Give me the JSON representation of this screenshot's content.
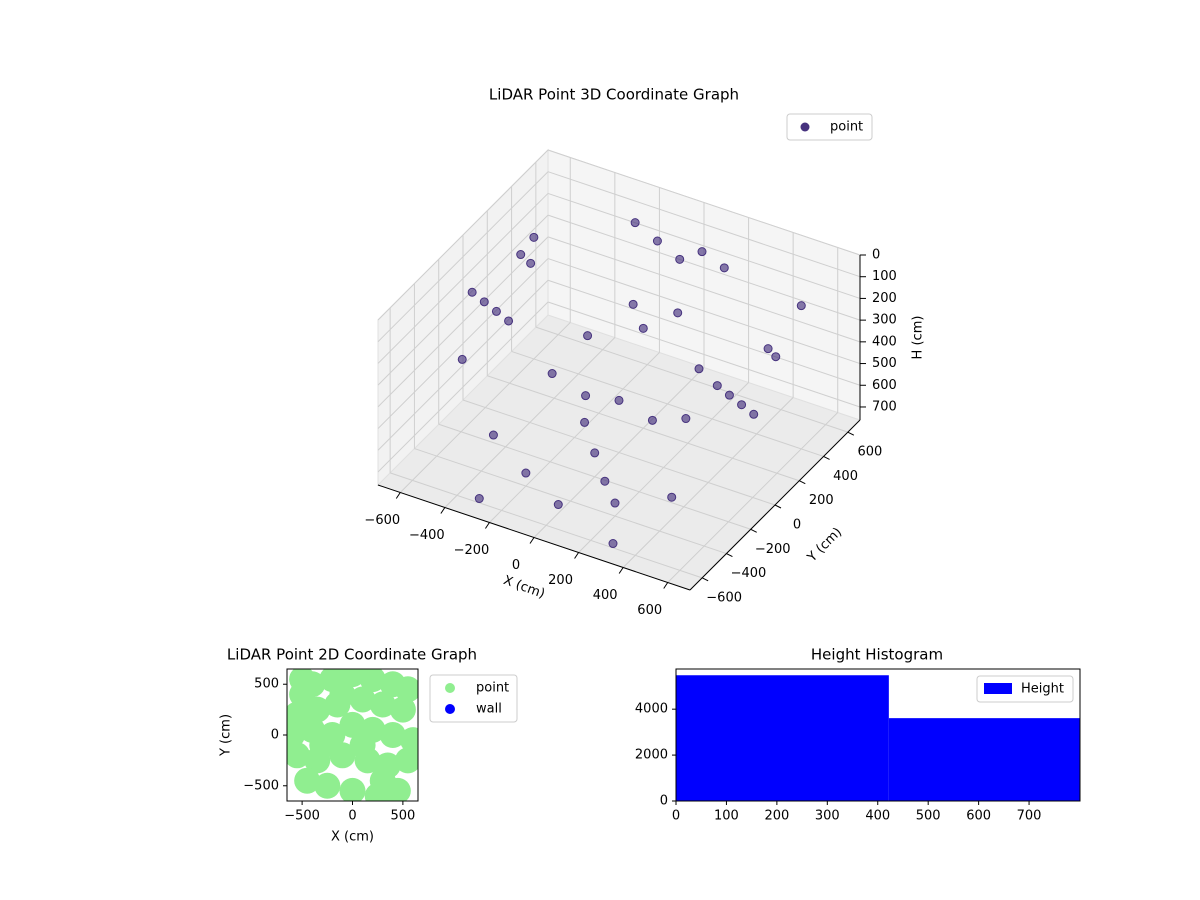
{
  "chart_data": [
    {
      "type": "scatter3d",
      "title": "LiDAR Point 3D Coordinate Graph",
      "xlabel": "X (cm)",
      "ylabel": "Y (cm)",
      "zlabel": "H (cm)",
      "xlim": [
        -700,
        700
      ],
      "ylim": [
        -700,
        700
      ],
      "zlim": [
        0,
        760
      ],
      "z_inverted": true,
      "xticks": [
        {
          "value": -600,
          "label": "−600"
        },
        {
          "value": -400,
          "label": "−400"
        },
        {
          "value": -200,
          "label": "−200"
        },
        0,
        200,
        400,
        600
      ],
      "yticks": [
        {
          "value": -600,
          "label": "−600"
        },
        {
          "value": -400,
          "label": "−400"
        },
        {
          "value": -200,
          "label": "−200"
        },
        0,
        200,
        400,
        600
      ],
      "zticks": [
        0,
        100,
        200,
        300,
        400,
        500,
        600,
        700
      ],
      "grid": true,
      "legend": "upper right",
      "series": [
        {
          "name": "point",
          "color": "#46327e",
          "x": [
            -550,
            -550,
            -550,
            -550,
            -550,
            -540,
            -560,
            550,
            550,
            550,
            550,
            560,
            540,
            -200,
            -100,
            0,
            100,
            200,
            -300,
            -150,
            0,
            150,
            300,
            -400,
            -200,
            0,
            200,
            400,
            0,
            100,
            -100,
            -300,
            300,
            600,
            -600,
            0,
            100,
            -100,
            250,
            -250
          ],
          "y": [
            -200,
            -100,
            0,
            100,
            200,
            -300,
            300,
            -200,
            -100,
            0,
            100,
            200,
            300,
            500,
            500,
            500,
            500,
            500,
            0,
            0,
            0,
            0,
            0,
            -300,
            -400,
            -500,
            -400,
            -300,
            200,
            300,
            300,
            -600,
            -600,
            400,
            400,
            -200,
            -300,
            -100,
            200,
            200
          ],
          "z": [
            100,
            200,
            300,
            400,
            150,
            350,
            250,
            150,
            250,
            350,
            450,
            200,
            300,
            50,
            100,
            150,
            80,
            120,
            500,
            550,
            520,
            560,
            500,
            650,
            700,
            720,
            700,
            660,
            300,
            250,
            280,
            740,
            740,
            100,
            200,
            650,
            690,
            600,
            400,
            420
          ]
        }
      ]
    },
    {
      "type": "scatter",
      "title": "LiDAR Point 2D Coordinate Graph",
      "xlabel": "X (cm)",
      "ylabel": "Y (cm)",
      "xlim": [
        -650,
        650
      ],
      "ylim": [
        -650,
        650
      ],
      "xticks": [
        {
          "value": -500,
          "label": "−500"
        },
        0,
        500
      ],
      "yticks": [
        {
          "value": -500,
          "label": "−500"
        },
        0,
        500
      ],
      "legend": "outside right",
      "series": [
        {
          "name": "point",
          "color": "#90ee90",
          "x": [
            -500,
            -400,
            -200,
            0,
            200,
            400,
            550,
            -550,
            -350,
            -150,
            100,
            300,
            500,
            -600,
            -400,
            -200,
            0,
            200,
            400,
            600,
            -550,
            -350,
            -100,
            150,
            350,
            550,
            -450,
            -250,
            0,
            250,
            450,
            -300,
            100,
            -100,
            300,
            -500
          ],
          "y": [
            400,
            500,
            550,
            600,
            550,
            500,
            450,
            200,
            250,
            300,
            350,
            300,
            250,
            0,
            50,
            0,
            100,
            50,
            0,
            -50,
            -200,
            -250,
            -200,
            -250,
            -300,
            -250,
            -450,
            -500,
            -550,
            -600,
            -550,
            -100,
            -100,
            400,
            -450,
            550
          ]
        },
        {
          "name": "wall",
          "color": "#0000ff",
          "x": [],
          "y": []
        }
      ]
    },
    {
      "type": "histogram",
      "title": "Height Histogram",
      "bins": [
        0,
        422,
        801
      ],
      "values": [
        5478,
        3609
      ],
      "color": "#0000ff",
      "xlim": [
        0,
        801
      ],
      "ylim": [
        0,
        5750
      ],
      "xticks": [
        0,
        100,
        200,
        300,
        400,
        500,
        600,
        700
      ],
      "yticks": [
        0,
        2000,
        4000
      ],
      "legend": "upper right",
      "series_name": "Height"
    }
  ]
}
